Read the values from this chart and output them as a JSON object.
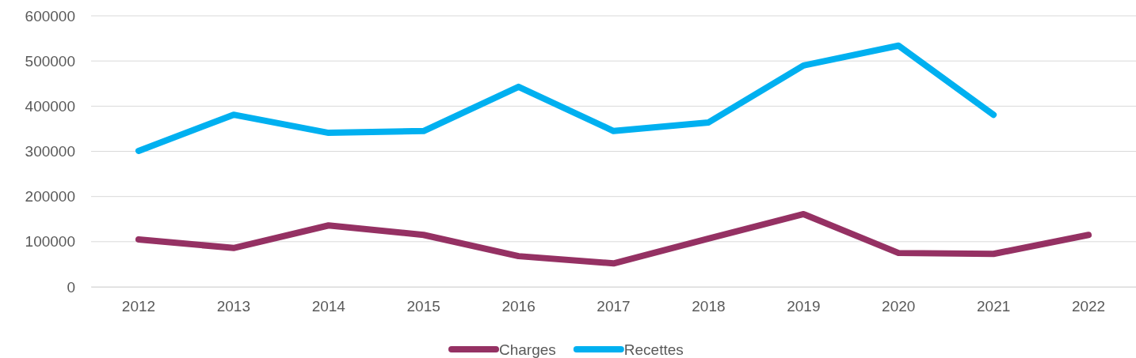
{
  "chart_data": {
    "type": "line",
    "categories": [
      "2012",
      "2013",
      "2014",
      "2015",
      "2016",
      "2017",
      "2018",
      "2019",
      "2020",
      "2021",
      "2022"
    ],
    "series": [
      {
        "name": "Charges",
        "color": "#953163",
        "values": [
          105000,
          86000,
          136000,
          115000,
          68000,
          52000,
          107000,
          161000,
          75000,
          73000,
          115000
        ]
      },
      {
        "name": "Recettes",
        "color": "#00b0f0",
        "values": [
          301000,
          381000,
          341000,
          345000,
          443000,
          345000,
          364000,
          490000,
          534000,
          381000,
          null
        ]
      }
    ],
    "ylim": [
      0,
      600000
    ],
    "yticks": [
      0,
      100000,
      200000,
      300000,
      400000,
      500000,
      600000
    ],
    "grid": "y",
    "legend": "bottom",
    "marker": "none",
    "line_style": "solid"
  }
}
